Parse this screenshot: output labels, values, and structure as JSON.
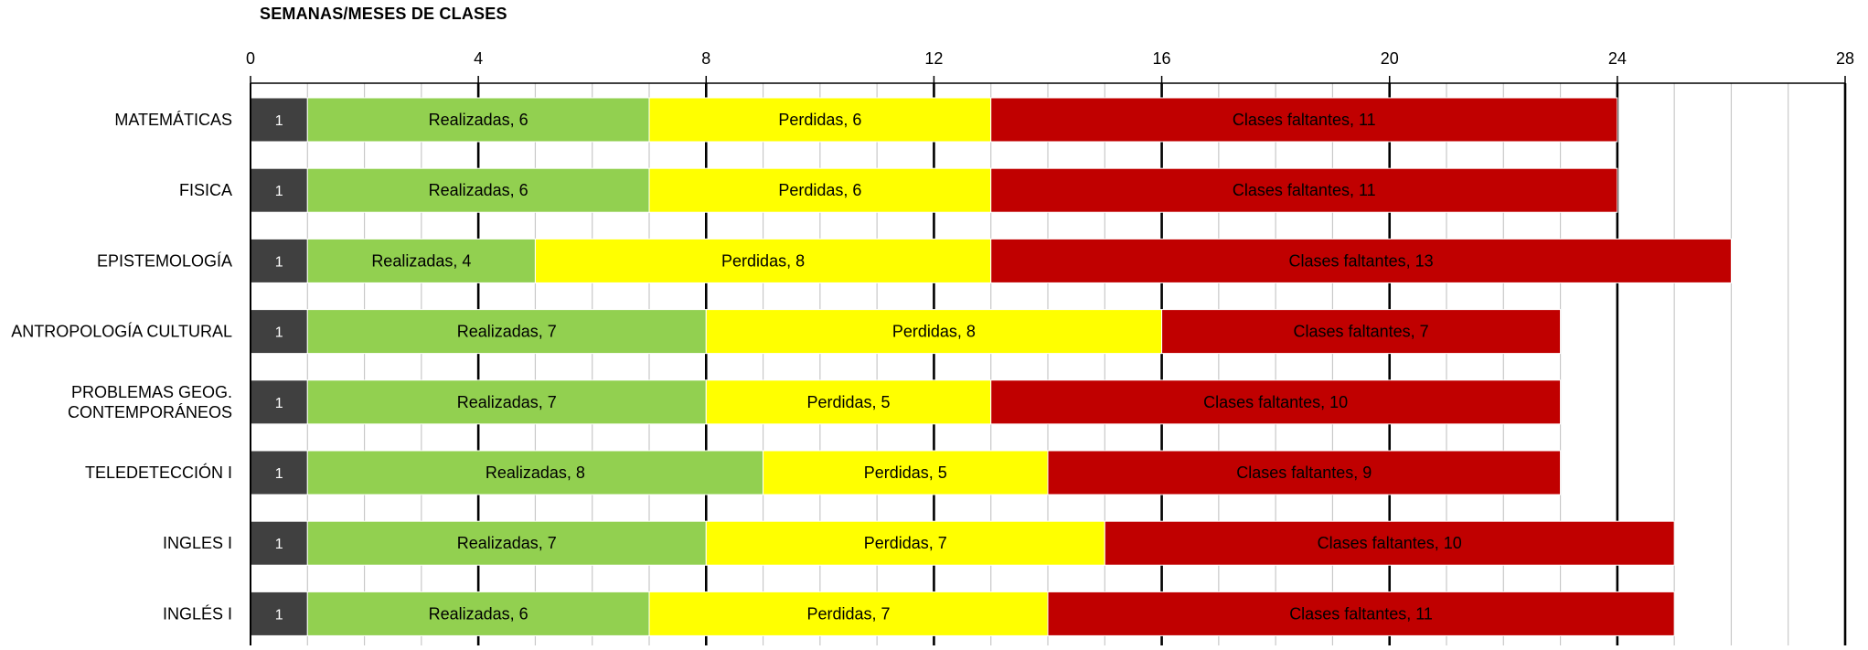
{
  "chart_data": {
    "type": "bar",
    "stacked": true,
    "orientation": "horizontal",
    "title": "SEMANAS/MESES DE CLASES",
    "xlim": [
      0,
      28
    ],
    "x_ticks": [
      "0",
      "4",
      "8",
      "12",
      "16",
      "20",
      "24",
      "28"
    ],
    "x_axis_position": "top",
    "grid": true,
    "legend": "none",
    "categories": [
      "MATEMÁTICAS",
      "FISICA",
      "EPISTEMOLOGÍA",
      "ANTROPOLOGÍA CULTURAL",
      "PROBLEMAS GEOG. CONTEMPORÁNEOS",
      "TELEDETECCIÓN I",
      "INGLES I",
      "INGLÉS I"
    ],
    "series": [
      {
        "name": "",
        "color": "#404040",
        "label_style": "value",
        "values": [
          1,
          1,
          1,
          1,
          1,
          1,
          1,
          1
        ],
        "labels": [
          "1",
          "1",
          "1",
          "1",
          "1",
          "1",
          "1",
          "1"
        ]
      },
      {
        "name": "Realizadas",
        "color": "#92d050",
        "label_style": "name_value",
        "values": [
          6,
          6,
          4,
          7,
          7,
          8,
          7,
          6
        ],
        "labels": [
          "Realizadas, 6",
          "Realizadas, 6",
          "Realizadas, 4",
          "Realizadas, 7",
          "Realizadas, 7",
          "Realizadas, 8",
          "Realizadas, 7",
          "Realizadas, 6"
        ]
      },
      {
        "name": "Perdidas",
        "color": "#ffff00",
        "label_style": "name_value",
        "values": [
          6,
          6,
          8,
          8,
          5,
          5,
          7,
          7
        ],
        "labels": [
          "Perdidas, 6",
          "Perdidas, 6",
          "Perdidas, 8",
          "Perdidas, 8",
          "Perdidas, 5",
          "Perdidas, 5",
          "Perdidas, 7",
          "Perdidas, 7"
        ]
      },
      {
        "name": "Clases faltantes",
        "color": "#c00000",
        "label_style": "name_value",
        "values": [
          11,
          11,
          13,
          7,
          10,
          9,
          10,
          11
        ],
        "labels": [
          "Clases faltantes, 11",
          "Clases faltantes, 11",
          "Clases faltantes, 13",
          "Clases faltantes, 7",
          "Clases faltantes, 10",
          "Clases faltantes, 9",
          "Clases faltantes, 10",
          "Clases faltantes, 11"
        ]
      }
    ]
  }
}
